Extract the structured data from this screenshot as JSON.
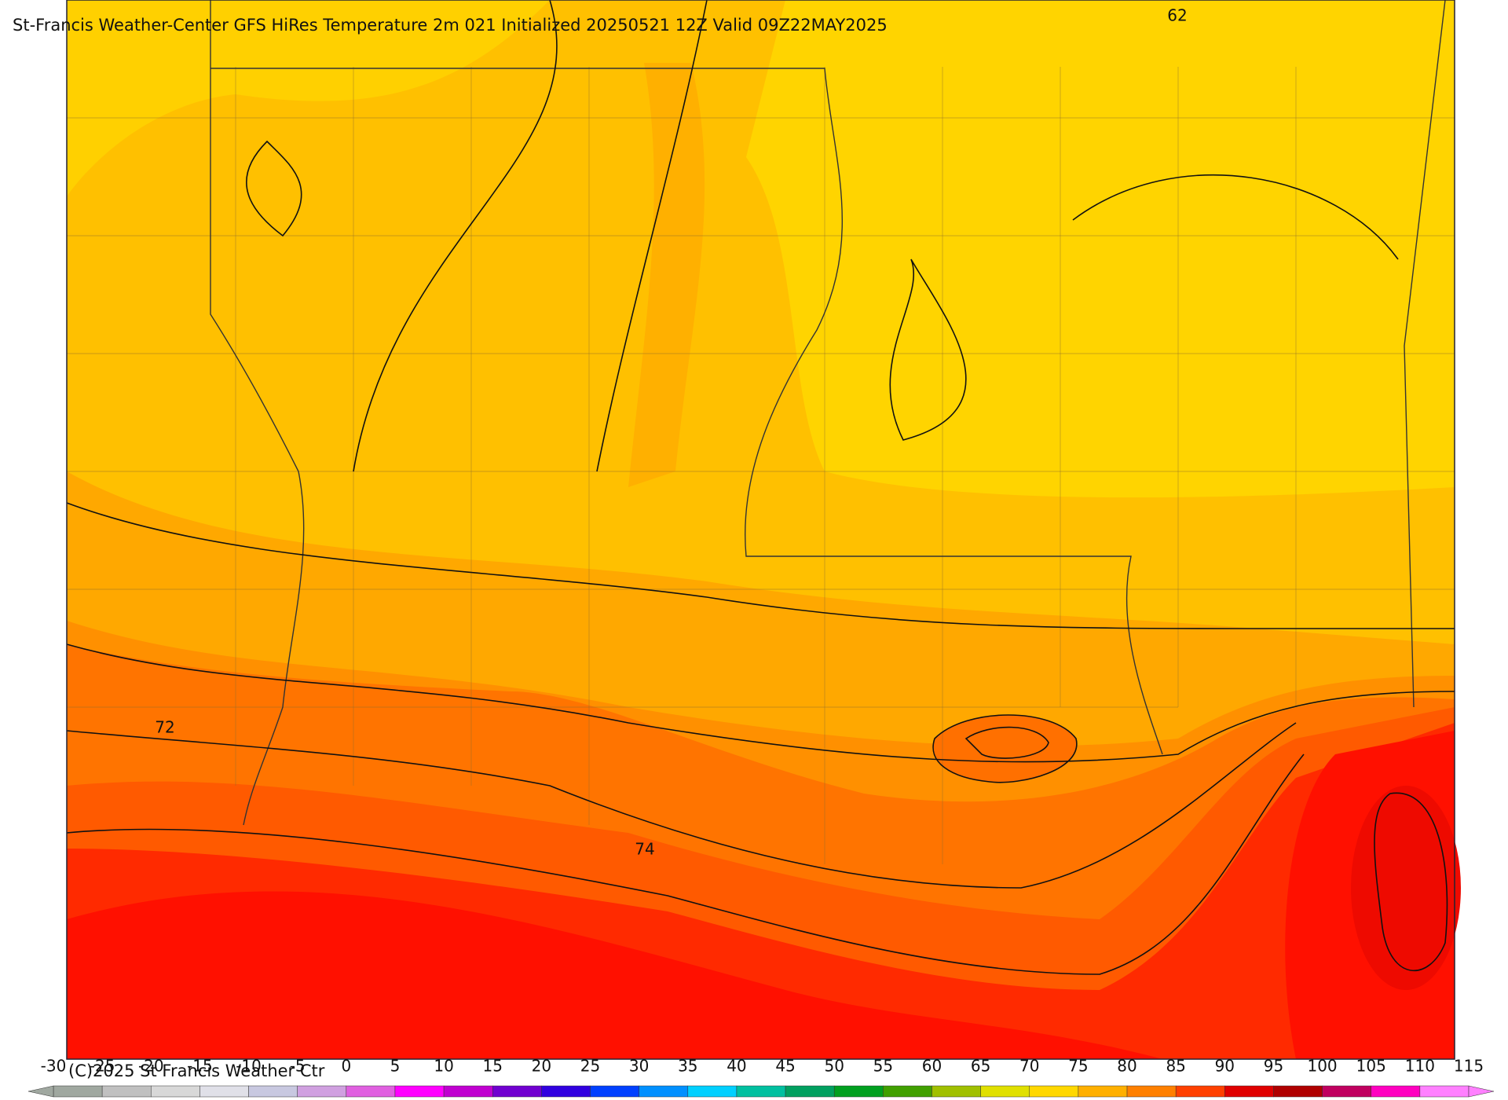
{
  "header": {
    "title": "St-Francis Weather-Center GFS HiRes Temperature 2m  021 Initialized 20250521 12Z Valid 09Z22MAY2025"
  },
  "contour_labels": [
    "62",
    "72",
    "74"
  ],
  "colorbar": {
    "ticks": [
      -30,
      -25,
      -20,
      -15,
      -10,
      -5,
      0,
      5,
      10,
      15,
      20,
      25,
      30,
      35,
      40,
      45,
      50,
      55,
      60,
      65,
      70,
      75,
      80,
      85,
      90,
      95,
      100,
      105,
      110,
      115
    ],
    "colors": [
      "#a0a8a0",
      "#c0c0c0",
      "#d8d8d8",
      "#e0e0e8",
      "#c8c8e0",
      "#d0a0e0",
      "#e060e0",
      "#ff00ff",
      "#c000d0",
      "#7000d0",
      "#3000e0",
      "#0040ff",
      "#0090ff",
      "#00d0ff",
      "#00c0a0",
      "#00a060",
      "#00a020",
      "#40a000",
      "#a0c000",
      "#e0e000",
      "#ffd800",
      "#ffb000",
      "#ff8000",
      "#ff4000",
      "#e00000",
      "#b00000",
      "#c00060",
      "#ff00c0",
      "#ff80ff"
    ]
  },
  "footer": {
    "copyright": "(C)2025 St Francis Weather Ctr"
  }
}
